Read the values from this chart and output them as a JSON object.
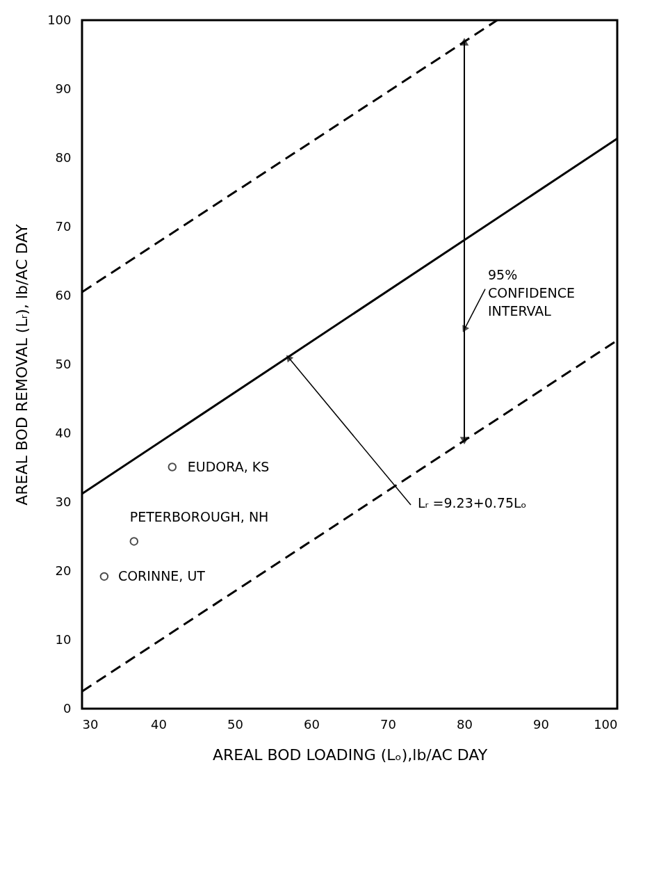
{
  "chart_data": {
    "type": "scatter",
    "xlabel": "AREAL BOD LOADING (Lₒ),lb/AC DAY",
    "ylabel": "AREAL BOD REMOVAL (Lᵣ), lb/AC DAY",
    "xlim": [
      30,
      100
    ],
    "xticks": [
      30,
      40,
      50,
      60,
      70,
      80,
      90,
      100
    ],
    "ylim": [
      0,
      100
    ],
    "yticks": [
      0,
      10,
      20,
      30,
      40,
      50,
      60,
      70,
      80,
      90,
      100
    ],
    "grid": false,
    "series": [
      {
        "type": "line",
        "color": "#000000",
        "line_style": "solid",
        "x": [
          30,
          100
        ],
        "values": [
          31.2,
          82.8
        ]
      },
      {
        "type": "line",
        "color": "#000000",
        "line_style": "dashed",
        "x": [
          30,
          84.3
        ],
        "values": [
          60.5,
          100
        ]
      },
      {
        "type": "line",
        "color": "#000000",
        "line_style": "dashed",
        "x": [
          30,
          100
        ],
        "values": [
          2.5,
          53.5
        ]
      },
      {
        "color": "#000000",
        "marker": "circle",
        "x": [
          32.9,
          36.8,
          41.8
        ],
        "values": [
          19.2,
          24.3,
          35.1
        ]
      }
    ],
    "annotations": [
      {
        "text": "EUDORA, KS",
        "x": 41.8,
        "y": 35.1
      },
      {
        "text": "PETERBOROUGH, NH",
        "x": 36.8,
        "y": 24.3
      },
      {
        "text": "CORINNE, UT",
        "x": 32.9,
        "y": 19.2
      },
      "95% CONFIDENCE INTERVAL",
      {
        "text": "Lᵣ =9.23+0.75Lₒ",
        "x": 57,
        "y": 51
      }
    ]
  }
}
